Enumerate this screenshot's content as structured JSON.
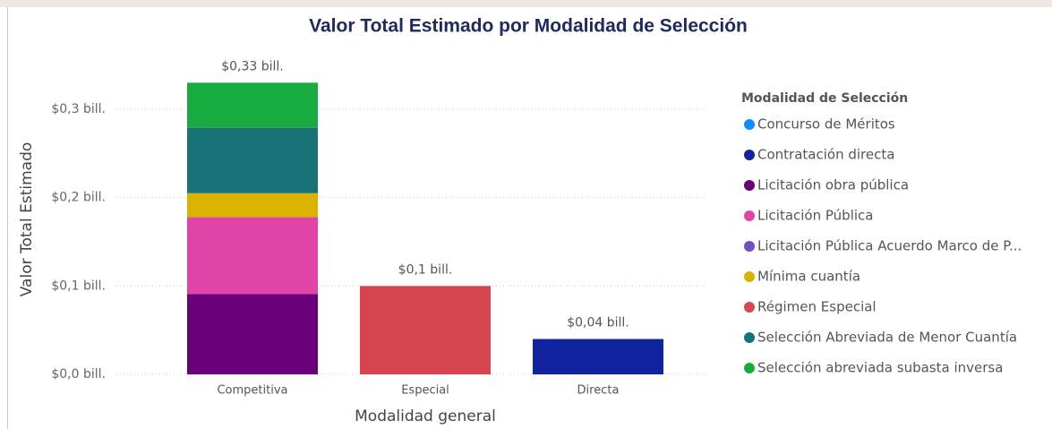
{
  "chart_data": {
    "type": "stacked_bar",
    "title": "Valor Total Estimado por Modalidad de Selección",
    "x_label": "Modalidad general",
    "y_label": "Valor Total Estimado",
    "legend_title": "Modalidad de Selección",
    "legend_position": "right",
    "grid": true,
    "categories": [
      "Competitiva",
      "Especial",
      "Directa"
    ],
    "ylim": [
      0,
      0.35
    ],
    "yticks": [
      {
        "value": 0,
        "label": "$0,0 bill."
      },
      {
        "value": 0.1,
        "label": "$0,1 bill."
      },
      {
        "value": 0.2,
        "label": "$0,2 bill."
      },
      {
        "value": 0.3,
        "label": "$0,3 bill."
      }
    ],
    "series": [
      {
        "name": "Concurso de Méritos",
        "color": "#118DFF",
        "values": [
          null,
          null,
          null
        ]
      },
      {
        "name": "Contratación directa",
        "color": "#12239E",
        "values": [
          null,
          null,
          0.04
        ]
      },
      {
        "name": "Licitación obra pública",
        "color": "#6B007B",
        "values": [
          0.091,
          null,
          null
        ]
      },
      {
        "name": "Licitación Pública",
        "color": "#E044A7",
        "values": [
          0.087,
          null,
          null
        ]
      },
      {
        "name": "Licitación Pública Acuerdo Marco de P...",
        "color": "#744EC2",
        "values": [
          null,
          null,
          null
        ]
      },
      {
        "name": "Mínima cuantía",
        "color": "#D9B300",
        "values": [
          0.027,
          null,
          null
        ]
      },
      {
        "name": "Régimen Especial",
        "color": "#D64550",
        "values": [
          null,
          0.1,
          null
        ]
      },
      {
        "name": "Selección Abreviada de Menor Cuantía",
        "color": "#197278",
        "values": [
          0.074,
          null,
          null
        ]
      },
      {
        "name": "Selección abreviada subasta inversa",
        "color": "#1AAB40",
        "values": [
          0.051,
          null,
          null
        ]
      }
    ],
    "totals": {
      "values": [
        0.33,
        0.1,
        0.04
      ],
      "value_labels": [
        "$0,33 bill.",
        "$0,1 bill.",
        "$0,04 bill."
      ]
    }
  }
}
